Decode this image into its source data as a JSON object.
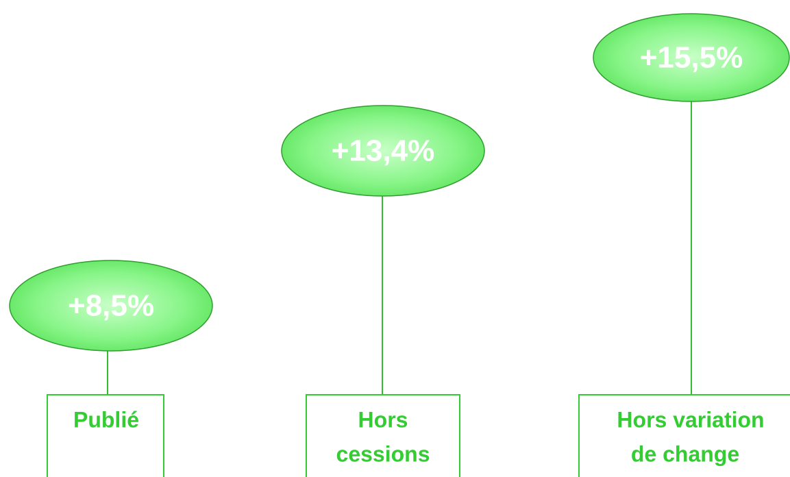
{
  "nodes": [
    {
      "value": "+8,5%",
      "label": [
        "Publié"
      ]
    },
    {
      "value": "+13,4%",
      "label": [
        "Hors",
        "cessions"
      ]
    },
    {
      "value": "+15,5%",
      "label": [
        "Hors variation",
        "de change"
      ]
    }
  ]
}
